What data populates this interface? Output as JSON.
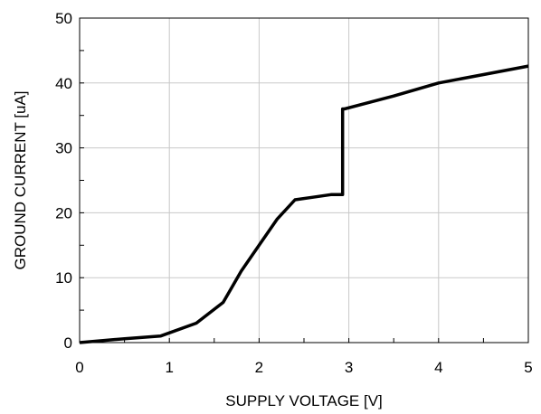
{
  "chart_data": {
    "type": "line",
    "title": "",
    "xlabel": "SUPPLY VOLTAGE [V]",
    "ylabel": "GROUND CURRENT [uA]",
    "xlim": [
      0,
      5
    ],
    "ylim": [
      0,
      50
    ],
    "x_ticks": [
      0,
      1,
      2,
      3,
      4,
      5
    ],
    "y_ticks": [
      0,
      10,
      20,
      30,
      40,
      50
    ],
    "x_minor_step": 0.5,
    "y_minor_step": 5,
    "grid": true,
    "series": [
      {
        "color": "#000000",
        "x": [
          0,
          0.5,
          0.9,
          1.3,
          1.6,
          1.8,
          2.0,
          2.2,
          2.4,
          2.6,
          2.8,
          2.93,
          2.93,
          2.95,
          3.5,
          4.0,
          4.5,
          5.0
        ],
        "y": [
          0,
          0.6,
          1.0,
          3.0,
          6.2,
          11.0,
          15.0,
          19.0,
          22.0,
          22.4,
          22.8,
          22.8,
          36.0,
          36.0,
          38.0,
          40.0,
          41.3,
          42.6
        ]
      }
    ]
  }
}
